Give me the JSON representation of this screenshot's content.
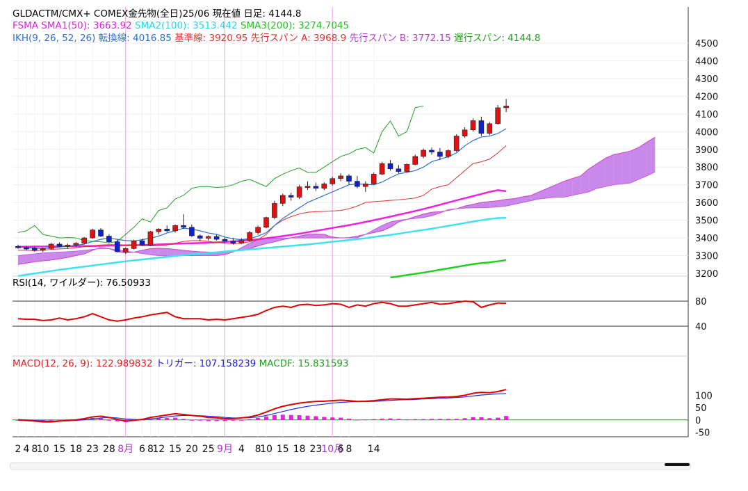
{
  "header": {
    "line1": "GLDACTM/CMX+ COMEX金先物(全日)25/06  現在値 日足: 4144.8",
    "sma": [
      {
        "text": "FSMA SMA1(50): 3663.92",
        "color": "#e020e0"
      },
      {
        "text": "SMA2(100): 3513.442",
        "color": "#20d8e8"
      },
      {
        "text": "SMA3(200): 3274.7045",
        "color": "#20c020"
      }
    ],
    "ikh": [
      {
        "text": "IKH(9, 26, 52, 26) 転換線: 4016.85",
        "color": "#2a6fd6"
      },
      {
        "text": "基準線: 3920.95",
        "color": "#e03030"
      },
      {
        "text": "先行スパン A: 3968.9",
        "color": "#e03030"
      },
      {
        "text": "先行スパン B: 3772.15",
        "color": "#b040d0"
      },
      {
        "text": "遅行スパン: 4144.8",
        "color": "#20a020"
      }
    ]
  },
  "rsi_label": "RSI(14, ワイルダー): 76.50933",
  "macd_labels": [
    {
      "text": "MACD(12, 26, 9): 122.989832",
      "color": "#e02020"
    },
    {
      "text": "トリガー: 107.158239",
      "color": "#2020e0"
    },
    {
      "text": "MACDF: 15.831593",
      "color": "#20a020"
    }
  ],
  "colors": {
    "up": "#e01010",
    "down": "#1020d0",
    "cloud": "#c47be8",
    "sma1": "#f020e0",
    "sma2": "#40e0f0",
    "sma3": "#20d020",
    "tenkan": "#2a6fd6",
    "kijun": "#e03030",
    "chikou": "#20a020",
    "month_line": "#f0a0e0"
  },
  "chart_data": {
    "type": "candlestick",
    "price_axis": {
      "ticks": [
        3200,
        3300,
        3400,
        3500,
        3600,
        3700,
        3800,
        3900,
        4000,
        4100,
        4200,
        4300,
        4400,
        4500
      ],
      "range": [
        3200,
        4500
      ]
    },
    "rsi_axis": {
      "ticks": [
        40,
        80
      ],
      "range": [
        0,
        100
      ]
    },
    "macd_axis": {
      "ticks": [
        -50,
        0,
        50,
        100
      ],
      "range": [
        -60,
        180
      ]
    },
    "x_labels": [
      "2",
      "4",
      "8",
      "10",
      "15",
      "18",
      "23",
      "28",
      "8月",
      "6",
      "8",
      "12",
      "15",
      "20",
      "25",
      "9月",
      "4",
      "8",
      "10",
      "15",
      "18",
      "23",
      "10月",
      "6",
      "8",
      "14"
    ],
    "x_label_index": [
      0,
      1,
      2,
      3,
      5,
      7,
      9,
      11,
      13,
      15,
      16,
      17,
      19,
      21,
      23,
      25,
      27,
      29,
      30,
      32,
      34,
      36,
      38,
      39,
      40,
      43
    ],
    "month_line_index": [
      13,
      25,
      38
    ],
    "candles": [
      [
        3352,
        3362,
        3338,
        3345
      ],
      [
        3345,
        3355,
        3330,
        3342
      ],
      [
        3342,
        3352,
        3322,
        3330
      ],
      [
        3330,
        3345,
        3320,
        3340
      ],
      [
        3340,
        3372,
        3335,
        3365
      ],
      [
        3365,
        3375,
        3348,
        3352
      ],
      [
        3352,
        3368,
        3340,
        3360
      ],
      [
        3360,
        3376,
        3350,
        3370
      ],
      [
        3370,
        3405,
        3365,
        3400
      ],
      [
        3400,
        3452,
        3395,
        3445
      ],
      [
        3445,
        3455,
        3405,
        3410
      ],
      [
        3410,
        3422,
        3370,
        3378
      ],
      [
        3378,
        3390,
        3318,
        3322
      ],
      [
        3322,
        3345,
        3310,
        3340
      ],
      [
        3340,
        3390,
        3335,
        3384
      ],
      [
        3384,
        3395,
        3355,
        3360
      ],
      [
        3360,
        3440,
        3355,
        3435
      ],
      [
        3435,
        3455,
        3420,
        3450
      ],
      [
        3450,
        3470,
        3432,
        3440
      ],
      [
        3440,
        3475,
        3430,
        3470
      ],
      [
        3470,
        3535,
        3450,
        3460
      ],
      [
        3460,
        3475,
        3405,
        3412
      ],
      [
        3412,
        3420,
        3380,
        3398
      ],
      [
        3398,
        3415,
        3385,
        3408
      ],
      [
        3408,
        3418,
        3385,
        3392
      ],
      [
        3392,
        3405,
        3370,
        3382
      ],
      [
        3382,
        3400,
        3362,
        3370
      ],
      [
        3370,
        3398,
        3365,
        3385
      ],
      [
        3385,
        3440,
        3380,
        3430
      ],
      [
        3430,
        3470,
        3418,
        3460
      ],
      [
        3460,
        3520,
        3455,
        3515
      ],
      [
        3515,
        3610,
        3505,
        3595
      ],
      [
        3595,
        3650,
        3580,
        3640
      ],
      [
        3640,
        3655,
        3610,
        3630
      ],
      [
        3630,
        3700,
        3620,
        3688
      ],
      [
        3688,
        3720,
        3672,
        3692
      ],
      [
        3692,
        3712,
        3665,
        3680
      ],
      [
        3680,
        3715,
        3670,
        3705
      ],
      [
        3705,
        3745,
        3695,
        3735
      ],
      [
        3735,
        3765,
        3720,
        3750
      ],
      [
        3750,
        3760,
        3700,
        3720
      ],
      [
        3720,
        3750,
        3680,
        3690
      ],
      [
        3690,
        3720,
        3660,
        3705
      ],
      [
        3705,
        3770,
        3700,
        3760
      ],
      [
        3760,
        3830,
        3755,
        3820
      ],
      [
        3820,
        3840,
        3780,
        3790
      ],
      [
        3790,
        3812,
        3765,
        3775
      ],
      [
        3775,
        3820,
        3770,
        3815
      ],
      [
        3815,
        3870,
        3810,
        3860
      ],
      [
        3860,
        3905,
        3850,
        3895
      ],
      [
        3895,
        3910,
        3870,
        3885
      ],
      [
        3885,
        3908,
        3840,
        3860
      ],
      [
        3860,
        3900,
        3850,
        3893
      ],
      [
        3893,
        3985,
        3885,
        3975
      ],
      [
        3975,
        4025,
        3965,
        4010
      ],
      [
        4010,
        4075,
        4000,
        4062
      ],
      [
        4062,
        4085,
        3975,
        3990
      ],
      [
        3990,
        4055,
        3980,
        4045
      ],
      [
        4045,
        4150,
        4040,
        4135
      ],
      [
        4135,
        4185,
        4110,
        4144.8
      ]
    ],
    "tenkan": [
      3348,
      3345,
      3342,
      3340,
      3343,
      3348,
      3352,
      3358,
      3365,
      3380,
      3392,
      3398,
      3392,
      3385,
      3382,
      3390,
      3398,
      3410,
      3428,
      3440,
      3455,
      3450,
      3440,
      3428,
      3420,
      3405,
      3395,
      3390,
      3396,
      3410,
      3430,
      3470,
      3510,
      3540,
      3570,
      3600,
      3620,
      3640,
      3660,
      3680,
      3700,
      3705,
      3702,
      3700,
      3715,
      3740,
      3762,
      3770,
      3780,
      3800,
      3830,
      3845,
      3858,
      3880,
      3920,
      3950,
      3970,
      3975,
      3990,
      4016.85
    ],
    "kijun": [
      3330,
      3330,
      3328,
      3330,
      3335,
      3338,
      3340,
      3345,
      3350,
      3355,
      3360,
      3362,
      3362,
      3360,
      3358,
      3356,
      3355,
      3356,
      3360,
      3370,
      3380,
      3385,
      3385,
      3380,
      3375,
      3370,
      3368,
      3370,
      3378,
      3390,
      3420,
      3470,
      3500,
      3520,
      3535,
      3545,
      3548,
      3550,
      3552,
      3555,
      3565,
      3580,
      3600,
      3605,
      3608,
      3612,
      3615,
      3620,
      3625,
      3640,
      3675,
      3690,
      3700,
      3740,
      3780,
      3820,
      3830,
      3845,
      3880,
      3920.95
    ],
    "sma1": [
      3350,
      3350,
      3351,
      3351,
      3352,
      3352,
      3353,
      3353,
      3354,
      3354,
      3355,
      3356,
      3357,
      3358,
      3359,
      3360,
      3361,
      3363,
      3365,
      3367,
      3369,
      3370,
      3371,
      3373,
      3375,
      3377,
      3380,
      3384,
      3388,
      3392,
      3398,
      3404,
      3410,
      3417,
      3424,
      3432,
      3440,
      3448,
      3456,
      3464,
      3472,
      3481,
      3490,
      3500,
      3510,
      3520,
      3531,
      3541,
      3552,
      3563,
      3575,
      3587,
      3600,
      3612,
      3624,
      3636,
      3648,
      3660,
      3670,
      3663.92
    ],
    "sma2": [
      3185,
      3192,
      3199,
      3206,
      3213,
      3220,
      3226,
      3232,
      3238,
      3244,
      3250,
      3256,
      3262,
      3268,
      3273,
      3278,
      3283,
      3288,
      3293,
      3298,
      3303,
      3307,
      3311,
      3315,
      3319,
      3323,
      3327,
      3331,
      3335,
      3339,
      3343,
      3347,
      3351,
      3355,
      3359,
      3363,
      3368,
      3373,
      3378,
      3383,
      3388,
      3393,
      3399,
      3405,
      3411,
      3417,
      3424,
      3431,
      3438,
      3445,
      3452,
      3460,
      3468,
      3476,
      3484,
      3492,
      3500,
      3507,
      3512,
      3513.442
    ],
    "sma3": [
      3176,
      3183,
      3190,
      3197,
      3204,
      3212,
      3220,
      3228,
      3236,
      3244,
      3252,
      3258,
      3262,
      3268,
      3274.7
    ],
    "sma3_start_index": 45,
    "chikou_start_index": 0,
    "chikou": [
      3430,
      3440,
      3470,
      3420,
      3410,
      3400,
      3402,
      3400,
      3385,
      3380,
      3378,
      3372,
      3380,
      3420,
      3460,
      3508,
      3490,
      3555,
      3570,
      3620,
      3640,
      3680,
      3690,
      3690,
      3685,
      3688,
      3700,
      3720,
      3730,
      3710,
      3690,
      3735,
      3760,
      3780,
      3795,
      3770,
      3770,
      3800,
      3830,
      3860,
      3875,
      3900,
      3910,
      3880,
      4000,
      4060,
      3975,
      4000,
      4135,
      4144.8
    ],
    "cloud_a": [
      3250,
      3258,
      3265,
      3270,
      3275,
      3282,
      3290,
      3300,
      3310,
      3330,
      3345,
      3340,
      3322,
      3315,
      3320,
      3330,
      3340,
      3342,
      3340,
      3335,
      3330,
      3325,
      3322,
      3320,
      3318,
      3320,
      3325,
      3330,
      3340,
      3355,
      3368,
      3378,
      3390,
      3400,
      3410,
      3420,
      3422,
      3420,
      3405,
      3400,
      3402,
      3410,
      3420,
      3430,
      3440,
      3460,
      3490,
      3505,
      3520,
      3535,
      3545,
      3548,
      3555,
      3565,
      3580,
      3590,
      3600,
      3605,
      3610,
      3618,
      3622,
      3632,
      3640,
      3660,
      3680,
      3700,
      3720,
      3735,
      3750,
      3790,
      3820,
      3850,
      3870,
      3880,
      3890,
      3910,
      3940,
      3968.9
    ],
    "cloud_b": [
      3300,
      3305,
      3310,
      3315,
      3318,
      3320,
      3322,
      3325,
      3330,
      3335,
      3340,
      3340,
      3332,
      3325,
      3320,
      3312,
      3305,
      3300,
      3298,
      3298,
      3300,
      3300,
      3300,
      3300,
      3300,
      3305,
      3320,
      3345,
      3370,
      3390,
      3395,
      3398,
      3400,
      3400,
      3400,
      3400,
      3400,
      3400,
      3400,
      3400,
      3400,
      3400,
      3420,
      3445,
      3470,
      3490,
      3500,
      3505,
      3510,
      3515,
      3525,
      3540,
      3560,
      3565,
      3568,
      3570,
      3570,
      3572,
      3575,
      3580,
      3590,
      3600,
      3610,
      3620,
      3625,
      3630,
      3630,
      3640,
      3650,
      3660,
      3680,
      3690,
      3700,
      3705,
      3710,
      3730,
      3750,
      3772.15
    ],
    "rsi": [
      52,
      51,
      51,
      49,
      50,
      53,
      50,
      52,
      55,
      60,
      55,
      50,
      48,
      50,
      53,
      55,
      58,
      60,
      62,
      55,
      52,
      52,
      52,
      50,
      51,
      50,
      52,
      54,
      56,
      59,
      65,
      70,
      72,
      70,
      74,
      75,
      73,
      74,
      76,
      75,
      70,
      74,
      72,
      76,
      78,
      76,
      72,
      72,
      74,
      76,
      78,
      75,
      76,
      78,
      80,
      79,
      70,
      74,
      77,
      76.5
    ],
    "macd": [
      0,
      -2,
      -5,
      -8,
      -8,
      -5,
      -2,
      0,
      5,
      12,
      15,
      10,
      2,
      -5,
      -2,
      2,
      10,
      15,
      20,
      25,
      22,
      18,
      15,
      10,
      8,
      5,
      5,
      8,
      12,
      20,
      32,
      45,
      55,
      62,
      68,
      72,
      75,
      76,
      78,
      80,
      78,
      75,
      76,
      78,
      82,
      85,
      85,
      84,
      86,
      88,
      90,
      92,
      93,
      95,
      100,
      108,
      112,
      110,
      115,
      122.99
    ],
    "trigger": [
      2,
      0,
      -2,
      -4,
      -5,
      -5,
      -4,
      -2,
      0,
      4,
      8,
      10,
      8,
      4,
      2,
      1,
      4,
      8,
      12,
      16,
      18,
      18,
      17,
      15,
      13,
      10,
      8,
      8,
      9,
      12,
      18,
      26,
      34,
      42,
      49,
      55,
      60,
      64,
      68,
      71,
      73,
      74,
      74,
      75,
      77,
      79,
      81,
      82,
      83,
      85,
      86,
      88,
      89,
      91,
      93,
      97,
      101,
      103,
      106,
      107.16
    ]
  }
}
